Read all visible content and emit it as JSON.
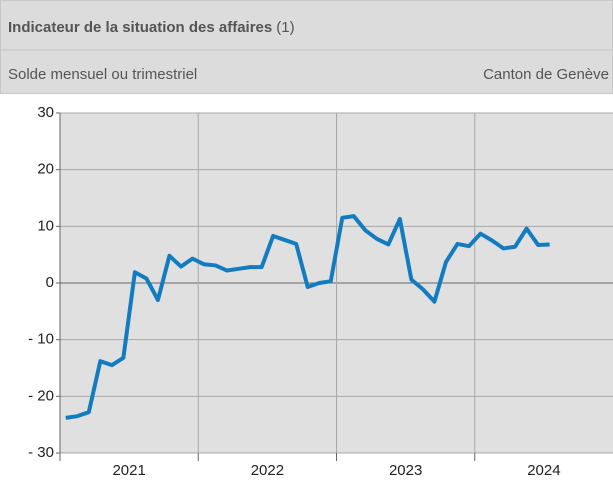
{
  "chart_data": {
    "type": "line",
    "title": "Indicateur de la situation des affaires",
    "title_note": "(1)",
    "subtitle": "Solde mensuel ou trimestriel",
    "region": "Canton de Genève",
    "categories": [
      null,
      null,
      null,
      null,
      null,
      null,
      null,
      null,
      null,
      null,
      null,
      null,
      null,
      null,
      null,
      null,
      null,
      null,
      null,
      null,
      null,
      null,
      null,
      null,
      null,
      null,
      null,
      null,
      null,
      null,
      null,
      null,
      null,
      null,
      null,
      null,
      null,
      null,
      null,
      null,
      null,
      null,
      null
    ],
    "year_labels": [
      "2021",
      "2022",
      "2023",
      "2024"
    ],
    "series": [
      {
        "color": "#137cc0",
        "values": [
          -23.8,
          -23.5,
          -22.8,
          -13.8,
          -14.5,
          -13.2,
          1.9,
          0.8,
          -3,
          4.8,
          2.9,
          4.3,
          3.3,
          3.1,
          2.2,
          2.5,
          2.8,
          2.8,
          8.3,
          7.6,
          6.9,
          -0.7,
          0,
          0.3,
          11.5,
          11.8,
          9.3,
          7.8,
          6.8,
          11.3,
          0.6,
          -1.1,
          -3.3,
          3.7,
          6.9,
          6.5,
          8.7,
          7.5,
          6.1,
          6.4,
          9.6,
          6.7,
          6.8
        ]
      }
    ],
    "ylim": [
      -30,
      30
    ],
    "yticks": [
      {
        "value": -30,
        "label": "- 30"
      },
      {
        "value": -20,
        "label": "- 20"
      },
      {
        "value": -10,
        "label": "- 10"
      },
      0,
      10,
      20,
      30
    ],
    "grid": true
  }
}
